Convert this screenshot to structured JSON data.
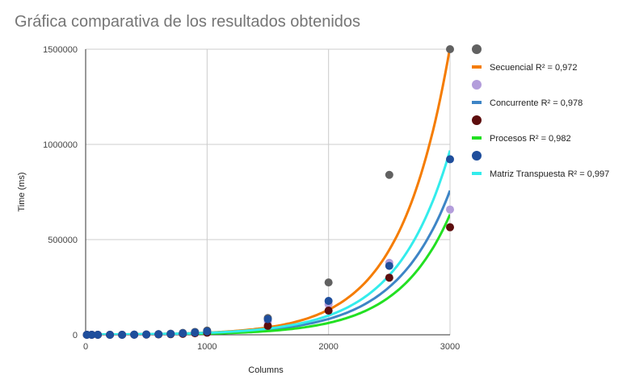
{
  "chart_data": {
    "type": "scatter",
    "title": "Gráfica comparativa de los resultados obtenidos",
    "xlabel": "Columns",
    "ylabel": "Time (ms)",
    "xlim": [
      0,
      3000
    ],
    "ylim": [
      0,
      1500000
    ],
    "x_ticks": [
      0,
      1000,
      2000,
      3000
    ],
    "x_tick_labels": [
      "0",
      "1000",
      "2000",
      "3000"
    ],
    "y_ticks": [
      0,
      500000,
      1000000,
      1500000
    ],
    "y_tick_labels": [
      "0",
      "500000",
      "1000000",
      "1500000"
    ],
    "grid": true,
    "legend_position": "right",
    "series": [
      {
        "name": "",
        "marker_color": "#616161",
        "trend_label": "Secuencial R² = 0,972",
        "trend_color": "#f57c00",
        "trend": {
          "a": 1000,
          "b": 0.00244
        },
        "points": [
          [
            10,
            0
          ],
          [
            50,
            0
          ],
          [
            100,
            0
          ],
          [
            200,
            0
          ],
          [
            300,
            0
          ],
          [
            400,
            1000
          ],
          [
            500,
            2000
          ],
          [
            600,
            3500
          ],
          [
            700,
            6000
          ],
          [
            800,
            10000
          ],
          [
            900,
            15000
          ],
          [
            1000,
            22000
          ],
          [
            1500,
            88000
          ],
          [
            2000,
            275000
          ],
          [
            2500,
            840000
          ],
          [
            3000,
            1500000
          ]
        ]
      },
      {
        "name": "",
        "marker_color": "#b39ddb",
        "trend_label": "Concurrente R² = 0,978",
        "trend_color": "#3d85c6",
        "trend": {
          "a": 1000,
          "b": 0.00221
        },
        "points": [
          [
            10,
            0
          ],
          [
            50,
            0
          ],
          [
            100,
            0
          ],
          [
            200,
            0
          ],
          [
            300,
            0
          ],
          [
            400,
            500
          ],
          [
            500,
            1500
          ],
          [
            600,
            2500
          ],
          [
            700,
            4000
          ],
          [
            800,
            7000
          ],
          [
            900,
            10000
          ],
          [
            1000,
            14000
          ],
          [
            1500,
            70000
          ],
          [
            2000,
            160000
          ],
          [
            2500,
            378000
          ],
          [
            3000,
            658000
          ]
        ]
      },
      {
        "name": "",
        "marker_color": "#5d0d0d",
        "trend_label": "Procesos R² = 0,982",
        "trend_color": "#22e022",
        "trend": {
          "a": 600,
          "b": 0.00232
        },
        "points": [
          [
            10,
            0
          ],
          [
            50,
            0
          ],
          [
            100,
            0
          ],
          [
            200,
            0
          ],
          [
            300,
            0
          ],
          [
            400,
            500
          ],
          [
            500,
            1200
          ],
          [
            600,
            2000
          ],
          [
            700,
            3000
          ],
          [
            800,
            5000
          ],
          [
            900,
            8000
          ],
          [
            1000,
            11000
          ],
          [
            1500,
            47000
          ],
          [
            2000,
            127000
          ],
          [
            2500,
            300000
          ],
          [
            3000,
            565000
          ]
        ]
      },
      {
        "name": "",
        "marker_color": "#1f4e9c",
        "trend_label": "Matriz Transpuesta R² = 0,997",
        "trend_color": "#33ecec",
        "trend": {
          "a": 1100,
          "b": 0.00226
        },
        "points": [
          [
            10,
            0
          ],
          [
            50,
            0
          ],
          [
            100,
            0
          ],
          [
            200,
            0
          ],
          [
            300,
            0
          ],
          [
            400,
            800
          ],
          [
            500,
            1500
          ],
          [
            600,
            3000
          ],
          [
            700,
            5000
          ],
          [
            800,
            8000
          ],
          [
            900,
            12000
          ],
          [
            1000,
            18000
          ],
          [
            1500,
            82000
          ],
          [
            2000,
            178000
          ],
          [
            2500,
            362000
          ],
          [
            3000,
            922000
          ]
        ]
      }
    ]
  }
}
